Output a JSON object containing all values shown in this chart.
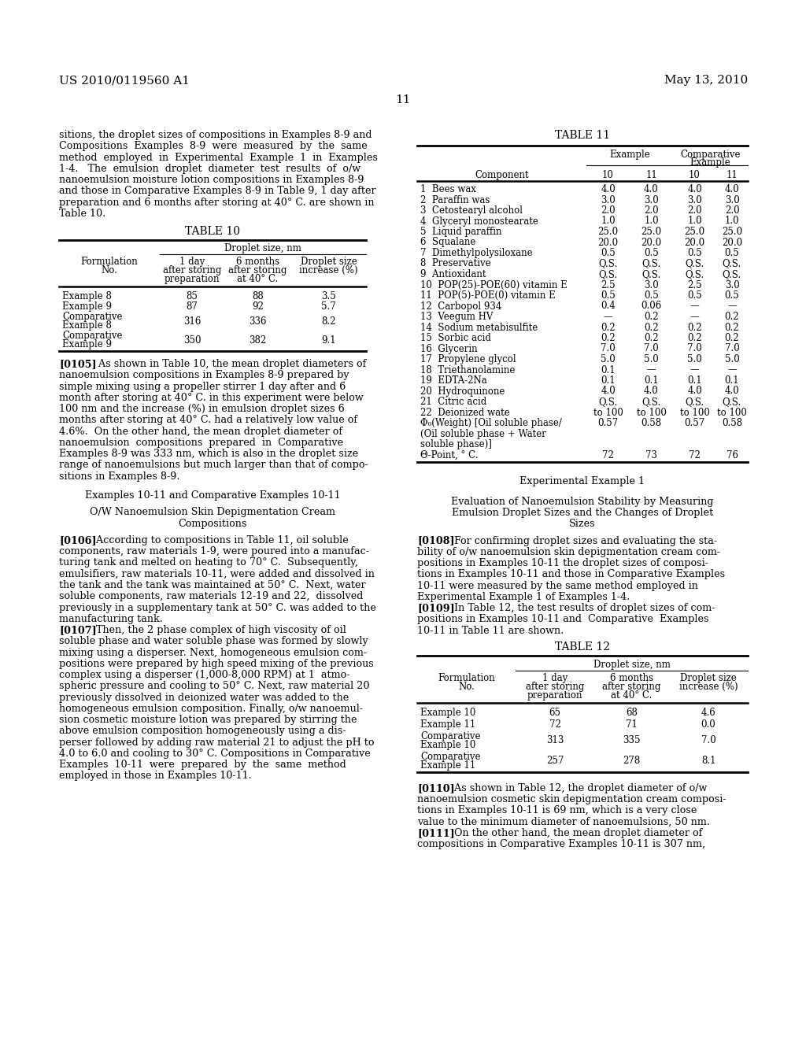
{
  "header_left": "US 2010/0119560 A1",
  "header_right": "May 13, 2010",
  "page_number": "11",
  "background_color": "#ffffff"
}
